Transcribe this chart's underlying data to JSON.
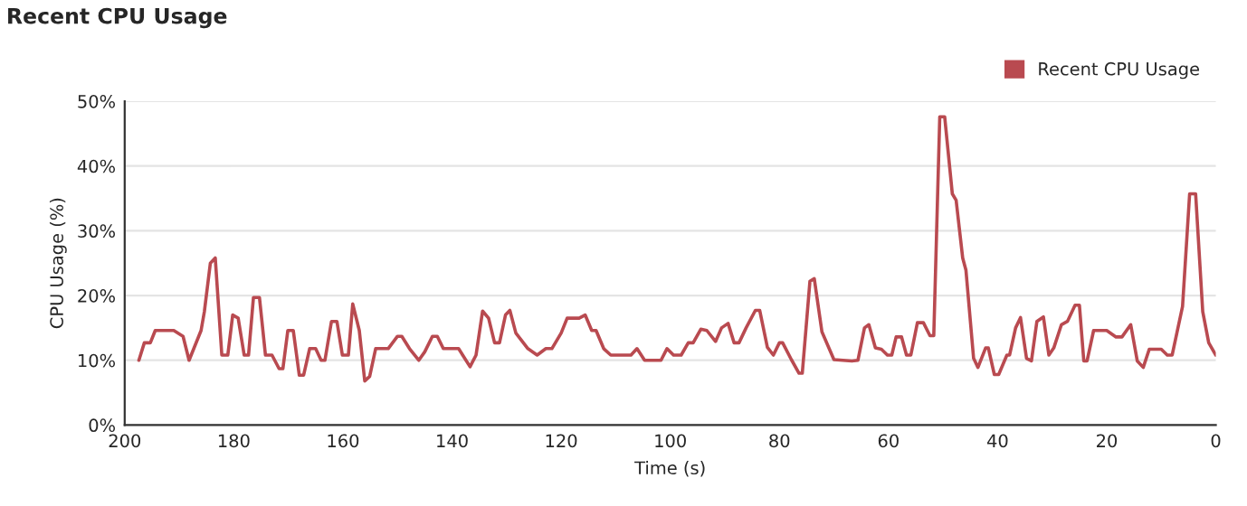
{
  "chart_data": {
    "type": "line",
    "title": "Recent CPU Usage",
    "xlabel": "Time (s)",
    "ylabel": "CPU Usage (%)",
    "xlim": [
      200,
      0
    ],
    "xticks": [
      200,
      180,
      160,
      140,
      120,
      100,
      80,
      60,
      40,
      20,
      0
    ],
    "ylim": [
      0,
      50
    ],
    "yticks": [
      {
        "value": 0,
        "label": "0%"
      },
      {
        "value": 10,
        "label": "10%"
      },
      {
        "value": 20,
        "label": "20%"
      },
      {
        "value": 30,
        "label": "30%"
      },
      {
        "value": 40,
        "label": "40%"
      },
      {
        "value": 50,
        "label": "50%"
      }
    ],
    "grid": "y",
    "legend": "top right",
    "marker": "none",
    "line_style": "solid",
    "series": [
      {
        "name": "Recent CPU Usage",
        "color": "#b94a50",
        "x": [
          197.4,
          196.4,
          195.3,
          194.4,
          191,
          189.3,
          188.2,
          186,
          185.4,
          184.3,
          183.4,
          182.2,
          181.1,
          180.2,
          179.2,
          178.1,
          177.3,
          176.4,
          175.3,
          174.2,
          173,
          171.7,
          171,
          170.1,
          169.1,
          168,
          167.2,
          166.1,
          165,
          164,
          163.3,
          162.1,
          161.1,
          160.1,
          159,
          158.2,
          157,
          156,
          155.1,
          154,
          151.7,
          150,
          149.2,
          147.8,
          146.1,
          145,
          143.6,
          142.7,
          141.6,
          138.8,
          136.7,
          135.6,
          134.4,
          133.3,
          132.2,
          131.3,
          130.2,
          129.4,
          128.3,
          126.1,
          124.4,
          122.8,
          121.7,
          120,
          118.9,
          116.7,
          115.6,
          114.4,
          113.6,
          112.2,
          110.9,
          107.2,
          106.1,
          104.7,
          101.7,
          100.6,
          99.4,
          98,
          96.7,
          95.8,
          94.4,
          93.3,
          91.7,
          90.6,
          89.4,
          88.3,
          87.4,
          86.1,
          84.4,
          83.6,
          82.2,
          81.1,
          80,
          79.4,
          77.8,
          76.4,
          75.8,
          74.4,
          73.6,
          72.2,
          70,
          66.7,
          65.6,
          64.4,
          63.6,
          62.4,
          61.3,
          60.2,
          59.4,
          58.6,
          57.6,
          56.7,
          55.9,
          54.7,
          53.6,
          52.4,
          51.7,
          50.6,
          49.7,
          48.3,
          47.6,
          46.4,
          45.8,
          44.4,
          43.6,
          42.2,
          41.7,
          40.6,
          39.8,
          38.3,
          37.8,
          36.7,
          35.8,
          34.7,
          33.8,
          32.8,
          31.6,
          30.6,
          29.7,
          28.3,
          27.2,
          25.8,
          25,
          24.2,
          23.6,
          22.4,
          20,
          18.3,
          17.2,
          15.6,
          14.4,
          13.3,
          12.2,
          10,
          8.9,
          8,
          6.1,
          4.8,
          3.7,
          2.4,
          1.3,
          0
        ],
        "values": [
          10,
          12.7,
          12.7,
          14.6,
          14.6,
          13.7,
          10,
          14.6,
          17.5,
          25,
          25.8,
          10.8,
          10.8,
          17,
          16.5,
          10.8,
          10.8,
          19.7,
          19.7,
          10.8,
          10.8,
          8.7,
          8.7,
          14.6,
          14.6,
          7.7,
          7.7,
          11.8,
          11.8,
          10,
          10,
          16,
          16,
          10.8,
          10.8,
          18.7,
          14.6,
          6.8,
          7.5,
          11.8,
          11.8,
          13.7,
          13.7,
          11.8,
          10,
          11.3,
          13.7,
          13.7,
          11.8,
          11.8,
          9,
          10.8,
          17.6,
          16.5,
          12.7,
          12.7,
          17,
          17.7,
          14.2,
          11.8,
          10.8,
          11.8,
          11.8,
          14.2,
          16.5,
          16.5,
          17,
          14.6,
          14.6,
          11.8,
          10.8,
          10.8,
          11.8,
          10,
          10,
          11.8,
          10.8,
          10.8,
          12.7,
          12.7,
          14.8,
          14.6,
          12.9,
          15,
          15.7,
          12.7,
          12.7,
          15,
          17.7,
          17.7,
          12,
          10.8,
          12.7,
          12.7,
          10.1,
          8,
          8,
          22.2,
          22.6,
          14.4,
          10.1,
          9.9,
          10,
          15,
          15.5,
          11.9,
          11.7,
          10.8,
          10.8,
          13.6,
          13.6,
          10.8,
          10.8,
          15.8,
          15.8,
          13.8,
          13.8,
          47.6,
          47.6,
          35.7,
          34.7,
          25.8,
          23.9,
          10.3,
          8.9,
          11.9,
          11.9,
          7.8,
          7.8,
          10.8,
          10.8,
          15,
          16.6,
          10.3,
          9.9,
          16,
          16.7,
          10.8,
          11.9,
          15.5,
          16,
          18.5,
          18.5,
          9.9,
          9.9,
          14.6,
          14.6,
          13.6,
          13.6,
          15.5,
          9.9,
          8.9,
          11.7,
          11.7,
          10.8,
          10.8,
          18.3,
          35.7,
          35.7,
          17.5,
          12.7,
          10.8
        ]
      }
    ]
  }
}
